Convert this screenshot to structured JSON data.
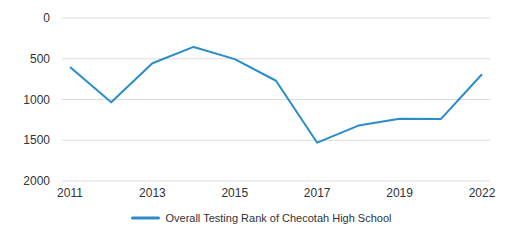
{
  "chart_data": {
    "type": "line",
    "categories": [
      "2011",
      null,
      "2013",
      null,
      "2015",
      null,
      "2017",
      null,
      "2019",
      null,
      "2022"
    ],
    "series": [
      {
        "name": "Overall Testing Rank of Checotah High School",
        "color": "#2a8ccb",
        "values": [
          600,
          1035,
          555,
          355,
          505,
          770,
          1530,
          1320,
          1235,
          1240,
          690
        ]
      }
    ],
    "ylim": [
      2000,
      0
    ],
    "yticks": [
      0,
      500,
      1000,
      1500,
      2000
    ],
    "grid": true,
    "legend": "bottom"
  }
}
